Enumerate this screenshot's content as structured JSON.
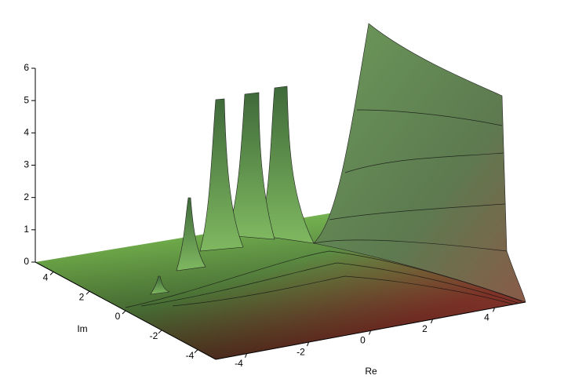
{
  "chart_data": {
    "type": "surface3d",
    "xlabel": "Re",
    "ylabel": "Im",
    "xlim": [
      -5,
      5
    ],
    "ylim": [
      -5,
      5
    ],
    "zlim": [
      0,
      6
    ],
    "xticks": [
      -4,
      -2,
      0,
      2,
      4
    ],
    "yticks": [
      -4,
      -2,
      0,
      2,
      4
    ],
    "zticks": [
      0,
      1,
      2,
      3,
      4,
      5,
      6
    ]
  }
}
